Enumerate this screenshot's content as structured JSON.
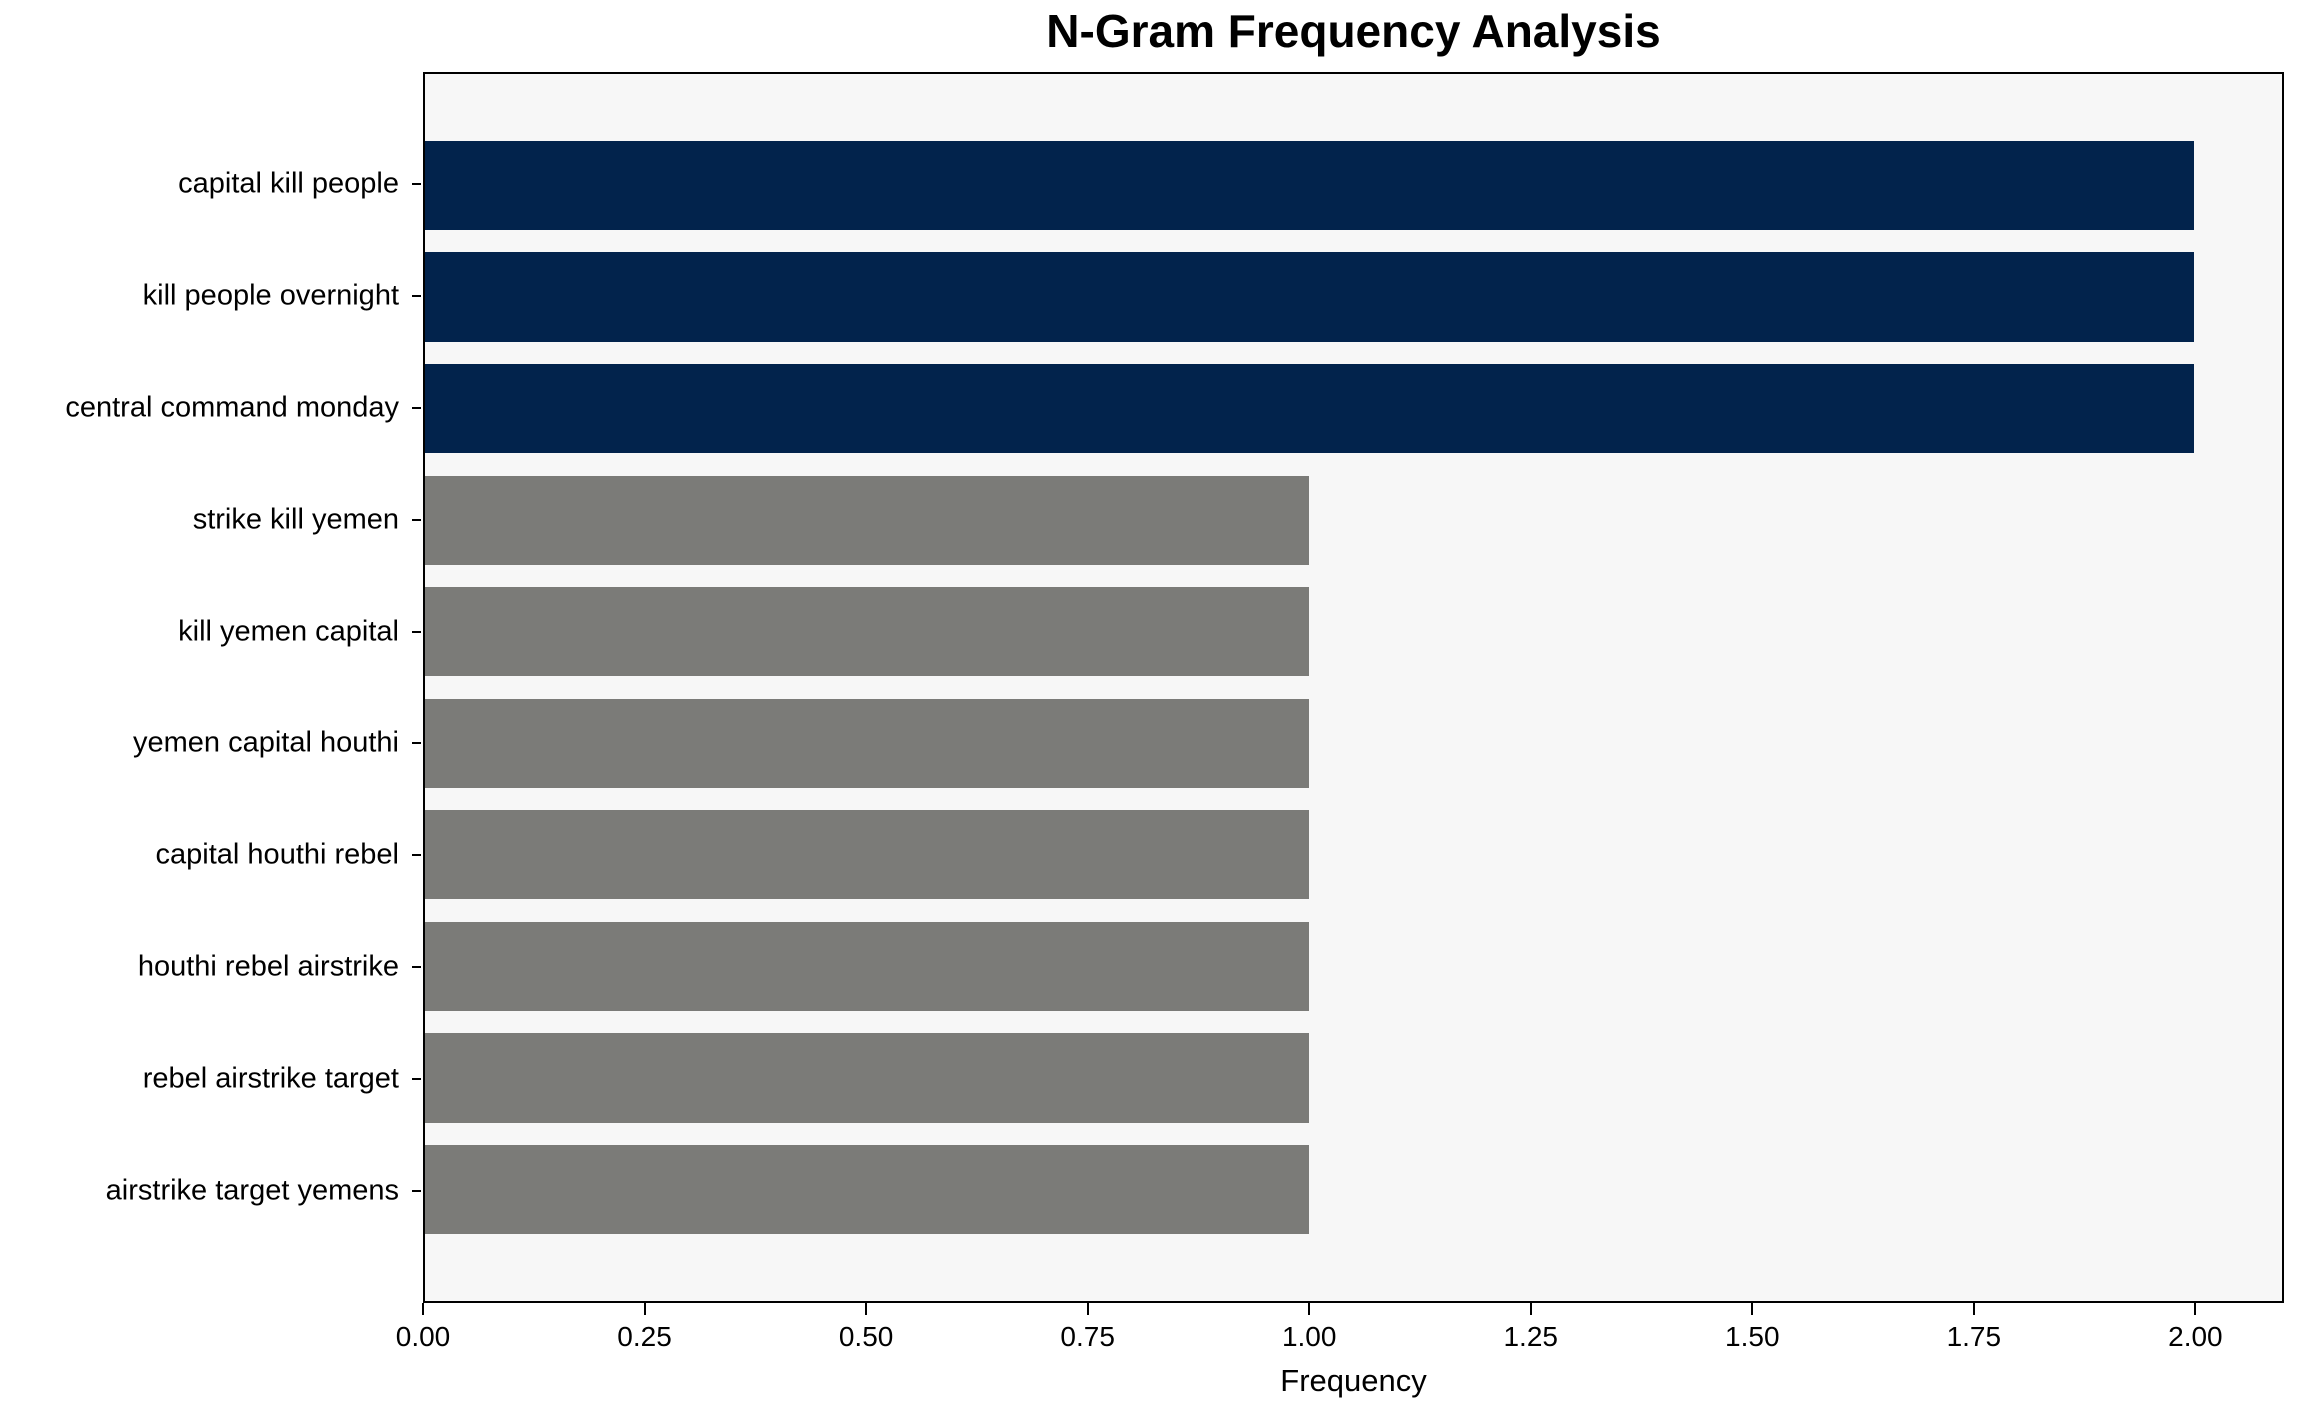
{
  "figure": {
    "background": "#ffffff"
  },
  "chart_data": {
    "type": "bar",
    "orientation": "horizontal",
    "title": "N-Gram Frequency Analysis",
    "xlabel": "Frequency",
    "ylabel": "",
    "categories": [
      "capital kill people",
      "kill people overnight",
      "central command monday",
      "strike kill yemen",
      "kill yemen capital",
      "yemen capital houthi",
      "capital houthi rebel",
      "houthi rebel airstrike",
      "rebel airstrike target",
      "airstrike target yemens"
    ],
    "values": [
      2,
      2,
      2,
      1,
      1,
      1,
      1,
      1,
      1,
      1
    ],
    "bar_colors": [
      "#02234c",
      "#02234c",
      "#02234c",
      "#7b7b78",
      "#7b7b78",
      "#7b7b78",
      "#7b7b78",
      "#7b7b78",
      "#7b7b78",
      "#7b7b78"
    ],
    "xlim": [
      0,
      2.1
    ],
    "xticks": [
      {
        "value": 0.0,
        "label": "0.00"
      },
      {
        "value": 0.25,
        "label": "0.25"
      },
      {
        "value": 0.5,
        "label": "0.50"
      },
      {
        "value": 0.75,
        "label": "0.75"
      },
      {
        "value": 1.0,
        "label": "1.00"
      },
      {
        "value": 1.25,
        "label": "1.25"
      },
      {
        "value": 1.5,
        "label": "1.50"
      },
      {
        "value": 1.75,
        "label": "1.75"
      },
      {
        "value": 2.0,
        "label": "2.00"
      }
    ],
    "grid": false,
    "legend": false,
    "plot_background": "#f7f7f7",
    "spine_color": "#000000",
    "text_color": "#000000"
  }
}
